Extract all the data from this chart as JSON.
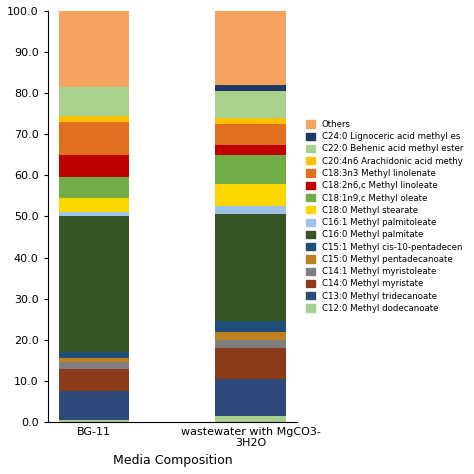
{
  "categories": [
    "BG-11",
    "wastewater with MgCO3-\n3H2O"
  ],
  "components": [
    "C12:0 Methyl dodecanoate",
    "C13:0 Methyl tridecanoate",
    "C14:0 Methyl myristate",
    "C14:1 Methyl myristoleate",
    "C15:0 Methyl pentadecanoate",
    "C15:1 Methyl cis-10-pentadecen",
    "C16:0 Methyl palmitate",
    "C16:1 Methyl palmitoleate",
    "C18:0 Methyl stearate",
    "C18:1n9,c Methyl oleate",
    "C18:2n6,c Methyl linoleate",
    "C18:3n3 Methyl linolenate",
    "C20:4n6 Arachidonic acid methy",
    "C22:0 Behenic acid methyl ester",
    "C24:0 Lignoceric acid methyl es",
    "Others"
  ],
  "colors": [
    "#a8d08d",
    "#2e4a7a",
    "#8b3a1a",
    "#7f7f7f",
    "#c08020",
    "#1f4e79",
    "#375623",
    "#9dc3e6",
    "#ffd700",
    "#70ad47",
    "#c00000",
    "#e07020",
    "#ffc000",
    "#a9d18e",
    "#1f3864",
    "#f4a460"
  ],
  "values_bg11": [
    0.5,
    7.0,
    5.5,
    1.5,
    1.0,
    1.5,
    33.0,
    1.0,
    3.5,
    5.0,
    5.5,
    8.0,
    1.5,
    7.0,
    0.0,
    18.5
  ],
  "values_ww": [
    1.5,
    9.0,
    7.5,
    2.0,
    2.0,
    2.5,
    26.0,
    2.0,
    5.5,
    7.0,
    2.5,
    5.0,
    1.5,
    6.5,
    1.5,
    18.0
  ],
  "xlabel": "Media Composition",
  "ylim": [
    0,
    100
  ],
  "yticks": [
    0,
    10,
    20,
    30,
    40,
    50,
    60,
    70,
    80,
    90,
    100
  ],
  "ytick_labels": [
    "0.0",
    "10.0",
    "20.0",
    "30.0",
    "40.0",
    "50.0",
    "60.0",
    "70.0",
    "80.0",
    "90.0",
    "100.0"
  ]
}
